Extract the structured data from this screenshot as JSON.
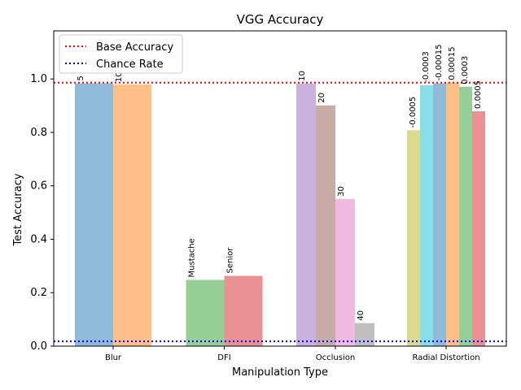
{
  "chart_data": {
    "type": "bar",
    "title": "VGG Accuracy",
    "xlabel": "Manipulation Type",
    "ylabel": "Test Accuracy",
    "ylim": [
      0,
      1.18
    ],
    "yticks": [
      0.0,
      0.2,
      0.4,
      0.6,
      0.8,
      1.0
    ],
    "ytick_labels": [
      "0.0",
      "0.2",
      "0.4",
      "0.6",
      "0.8",
      "1.0"
    ],
    "grid": false,
    "legend_position": "top-left",
    "reference_lines": [
      {
        "name": "Base Accuracy",
        "value": 0.986,
        "color": "#ff0000",
        "style": "dotted"
      },
      {
        "name": "Chance Rate",
        "value": 0.018,
        "color": "#0000ff",
        "style": "dotted"
      }
    ],
    "groups": [
      {
        "category": "Blur",
        "bars": [
          {
            "label": "5",
            "value": 0.984,
            "color": "#8fbbd9"
          },
          {
            "label": "10",
            "value": 0.979,
            "color": "#ffbf86"
          }
        ]
      },
      {
        "category": "DFI",
        "bars": [
          {
            "label": "Mustache",
            "value": 0.248,
            "color": "#95cf95"
          },
          {
            "label": "Senior",
            "value": 0.263,
            "color": "#ea9293"
          }
        ]
      },
      {
        "category": "Occlusion",
        "bars": [
          {
            "label": "10",
            "value": 0.983,
            "color": "#c9b3de"
          },
          {
            "label": "20",
            "value": 0.901,
            "color": "#c6aba6"
          },
          {
            "label": "30",
            "value": 0.551,
            "color": "#f1bbe1"
          },
          {
            "label": "40",
            "value": 0.086,
            "color": "#bfbfbf"
          }
        ]
      },
      {
        "category": "Radial Distortion",
        "bars": [
          {
            "label": "-0.0005",
            "value": 0.808,
            "color": "#dbdb8d"
          },
          {
            "label": "-0.0003",
            "value": 0.977,
            "color": "#88dfe7"
          },
          {
            "label": "-0.00015",
            "value": 0.984,
            "color": "#8fbbd9"
          },
          {
            "label": "0.00015",
            "value": 0.986,
            "color": "#ffbf86"
          },
          {
            "label": "0.0003",
            "value": 0.971,
            "color": "#95cf95"
          },
          {
            "label": "0.0005",
            "value": 0.879,
            "color": "#ea9293"
          }
        ]
      }
    ]
  }
}
